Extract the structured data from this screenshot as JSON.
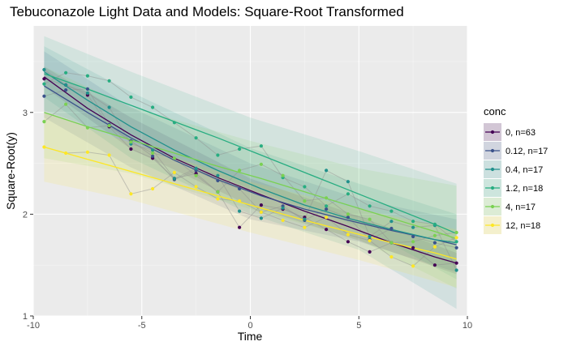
{
  "chart_data": {
    "type": "line",
    "title": "Tebuconazole Light Data and Models: Square-Root Transformed",
    "xlabel": "Time",
    "ylabel": "Square-Root(y)",
    "xlim": [
      -10,
      10
    ],
    "ylim": [
      1,
      3.85
    ],
    "x_ticks": [
      -10,
      -5,
      0,
      5,
      10
    ],
    "x_tick_labels": [
      "-10",
      "-5",
      "0",
      "5",
      "10"
    ],
    "y_ticks": [
      1,
      2,
      3
    ],
    "y_tick_labels": [
      "1",
      "2",
      "3"
    ],
    "grid": true,
    "legend": {
      "title": "conc",
      "position": "right"
    },
    "series": [
      {
        "name": "0, n=63",
        "color": "#440154",
        "points": [
          [
            -9.5,
            3.33
          ],
          [
            -8.5,
            3.27
          ],
          [
            -7.5,
            3.17
          ],
          [
            -6.5,
            2.86
          ],
          [
            -5.5,
            2.64
          ],
          [
            -4.5,
            2.55
          ],
          [
            -3.5,
            2.35
          ],
          [
            -2.5,
            2.4
          ],
          [
            -1.5,
            2.22
          ],
          [
            -0.5,
            1.87
          ],
          [
            0.5,
            2.09
          ],
          [
            1.5,
            2.05
          ],
          [
            2.5,
            1.97
          ],
          [
            3.5,
            1.85
          ],
          [
            4.5,
            1.73
          ],
          [
            5.5,
            1.63
          ],
          [
            6.5,
            1.72
          ],
          [
            7.5,
            1.67
          ],
          [
            8.5,
            1.5
          ],
          [
            9.5,
            1.52
          ]
        ],
        "fit": [
          [
            -9.5,
            3.35
          ],
          [
            -7.5,
            3.04
          ],
          [
            -5.5,
            2.78
          ],
          [
            -3.5,
            2.55
          ],
          [
            -1.5,
            2.36
          ],
          [
            0.5,
            2.19
          ],
          [
            2.5,
            2.03
          ],
          [
            4.5,
            1.88
          ],
          [
            6.5,
            1.72
          ],
          [
            8.5,
            1.58
          ],
          [
            9.5,
            1.52
          ]
        ],
        "band": {
          "upper": [
            [
              -9.5,
              3.45
            ],
            [
              -5.5,
              2.95
            ],
            [
              0,
              2.35
            ],
            [
              5,
              1.98
            ],
            [
              9.5,
              1.62
            ]
          ],
          "lower": [
            [
              -9.5,
              3.25
            ],
            [
              -5.5,
              2.64
            ],
            [
              0,
              2.08
            ],
            [
              5,
              1.74
            ],
            [
              9.5,
              1.41
            ]
          ]
        }
      },
      {
        "name": "0.12, n=17",
        "color": "#3b528b",
        "points": [
          [
            -9.5,
            3.16
          ],
          [
            -8.5,
            3.22
          ],
          [
            -7.5,
            3.23
          ],
          [
            -6.5,
            2.88
          ],
          [
            -5.5,
            2.72
          ],
          [
            -4.5,
            2.57
          ],
          [
            -3.5,
            2.34
          ],
          [
            -2.5,
            2.43
          ],
          [
            -1.5,
            2.33
          ],
          [
            -0.5,
            2.25
          ],
          [
            0.5,
            2.02
          ],
          [
            1.5,
            2.08
          ],
          [
            2.5,
            1.94
          ],
          [
            3.5,
            2.05
          ],
          [
            4.5,
            1.97
          ],
          [
            5.5,
            1.75
          ],
          [
            6.5,
            1.86
          ],
          [
            7.5,
            1.78
          ],
          [
            8.5,
            1.72
          ],
          [
            9.5,
            1.67
          ]
        ],
        "fit": [
          [
            -9.5,
            3.26
          ],
          [
            -7.5,
            3.0
          ],
          [
            -5.5,
            2.75
          ],
          [
            -3.5,
            2.53
          ],
          [
            -1.5,
            2.34
          ],
          [
            0.5,
            2.18
          ],
          [
            2.5,
            2.05
          ],
          [
            4.5,
            1.94
          ],
          [
            6.5,
            1.84
          ],
          [
            8.5,
            1.75
          ],
          [
            9.5,
            1.7
          ]
        ],
        "band": {
          "upper": [
            [
              -9.5,
              3.6
            ],
            [
              -5.5,
              3.05
            ],
            [
              0,
              2.5
            ],
            [
              5,
              2.15
            ],
            [
              9.5,
              1.95
            ]
          ],
          "lower": [
            [
              -9.5,
              2.95
            ],
            [
              -5.5,
              2.46
            ],
            [
              0,
              1.95
            ],
            [
              5,
              1.73
            ],
            [
              9.5,
              1.43
            ]
          ]
        }
      },
      {
        "name": "0.4, n=17",
        "color": "#21918c",
        "points": [
          [
            -9.5,
            3.42
          ],
          [
            -8.5,
            3.27
          ],
          [
            -7.5,
            3.19
          ],
          [
            -6.5,
            3.05
          ],
          [
            -5.5,
            2.69
          ],
          [
            -4.5,
            2.63
          ],
          [
            -3.5,
            2.35
          ],
          [
            -2.5,
            2.45
          ],
          [
            -1.5,
            2.38
          ],
          [
            -0.5,
            2.03
          ],
          [
            0.5,
            1.96
          ],
          [
            1.5,
            2.06
          ],
          [
            2.5,
            1.95
          ],
          [
            3.5,
            2.43
          ],
          [
            4.5,
            2.32
          ],
          [
            5.5,
            1.78
          ],
          [
            6.5,
            1.93
          ],
          [
            7.5,
            1.87
          ],
          [
            8.5,
            1.89
          ],
          [
            9.5,
            1.45
          ]
        ],
        "fit": [
          [
            -9.5,
            3.4
          ],
          [
            -7.5,
            3.12
          ],
          [
            -5.5,
            2.86
          ],
          [
            -3.5,
            2.63
          ],
          [
            -1.5,
            2.43
          ],
          [
            0.5,
            2.25
          ],
          [
            2.5,
            2.09
          ],
          [
            4.5,
            1.96
          ],
          [
            6.5,
            1.85
          ],
          [
            8.5,
            1.75
          ],
          [
            9.5,
            1.72
          ]
        ],
        "band": {
          "upper": [
            [
              -9.5,
              3.65
            ],
            [
              -5.5,
              3.2
            ],
            [
              0,
              2.65
            ],
            [
              5,
              2.3
            ],
            [
              9.5,
              2.0
            ]
          ],
          "lower": [
            [
              -9.5,
              3.15
            ],
            [
              -5.5,
              2.55
            ],
            [
              0,
              2.0
            ],
            [
              5,
              1.65
            ],
            [
              9.5,
              1.07
            ]
          ]
        }
      },
      {
        "name": "1.2, n=18",
        "color": "#27ad81",
        "points": [
          [
            -9.5,
            3.28
          ],
          [
            -8.5,
            3.39
          ],
          [
            -7.5,
            3.36
          ],
          [
            -6.5,
            3.31
          ],
          [
            -5.5,
            3.15
          ],
          [
            -4.5,
            3.05
          ],
          [
            -3.5,
            2.9
          ],
          [
            -2.5,
            2.75
          ],
          [
            -1.5,
            2.58
          ],
          [
            -0.5,
            2.64
          ],
          [
            0.5,
            2.67
          ],
          [
            1.5,
            2.36
          ],
          [
            2.5,
            2.27
          ],
          [
            3.5,
            2.08
          ],
          [
            4.5,
            2.2
          ],
          [
            5.5,
            2.08
          ],
          [
            6.5,
            2.03
          ],
          [
            7.5,
            1.93
          ],
          [
            8.5,
            1.9
          ],
          [
            9.5,
            1.73
          ]
        ],
        "fit": [
          [
            -9.5,
            3.38
          ],
          [
            -7.5,
            3.23
          ],
          [
            -5.5,
            3.07
          ],
          [
            -3.5,
            2.91
          ],
          [
            -1.5,
            2.75
          ],
          [
            0.5,
            2.58
          ],
          [
            2.5,
            2.41
          ],
          [
            4.5,
            2.24
          ],
          [
            6.5,
            2.07
          ],
          [
            8.5,
            1.9
          ],
          [
            9.5,
            1.81
          ]
        ],
        "band": {
          "upper": [
            [
              -9.5,
              3.75
            ],
            [
              -5.5,
              3.4
            ],
            [
              0,
              2.95
            ],
            [
              5,
              2.62
            ],
            [
              9.5,
              2.3
            ]
          ],
          "lower": [
            [
              -9.5,
              3.02
            ],
            [
              -5.5,
              2.72
            ],
            [
              0,
              2.25
            ],
            [
              5,
              1.88
            ],
            [
              9.5,
              1.36
            ]
          ]
        }
      },
      {
        "name": "4, n=17",
        "color": "#7ad151",
        "points": [
          [
            -9.5,
            2.91
          ],
          [
            -8.5,
            3.08
          ],
          [
            -7.5,
            2.85
          ],
          [
            -6.5,
            2.87
          ],
          [
            -5.5,
            2.71
          ],
          [
            -4.5,
            2.6
          ],
          [
            -3.5,
            2.55
          ],
          [
            -2.5,
            2.38
          ],
          [
            -1.5,
            2.22
          ],
          [
            -0.5,
            2.43
          ],
          [
            0.5,
            2.49
          ],
          [
            1.5,
            2.38
          ],
          [
            2.5,
            2.13
          ],
          [
            3.5,
            2.16
          ],
          [
            4.5,
            2.0
          ],
          [
            5.5,
            1.95
          ],
          [
            6.5,
            1.72
          ],
          [
            7.5,
            1.73
          ],
          [
            8.5,
            1.79
          ],
          [
            9.5,
            1.82
          ]
        ],
        "fit": [
          [
            -9.5,
            3.0
          ],
          [
            -7.5,
            2.86
          ],
          [
            -5.5,
            2.73
          ],
          [
            -3.5,
            2.6
          ],
          [
            -1.5,
            2.47
          ],
          [
            0.5,
            2.35
          ],
          [
            2.5,
            2.22
          ],
          [
            4.5,
            2.09
          ],
          [
            6.5,
            1.96
          ],
          [
            8.5,
            1.83
          ],
          [
            9.5,
            1.76
          ]
        ],
        "band": {
          "upper": [
            [
              -9.5,
              3.45
            ],
            [
              -5.5,
              3.05
            ],
            [
              0,
              2.72
            ],
            [
              5,
              2.45
            ],
            [
              9.5,
              2.28
            ]
          ],
          "lower": [
            [
              -9.5,
              2.55
            ],
            [
              -5.5,
              2.4
            ],
            [
              0,
              2.05
            ],
            [
              5,
              1.75
            ],
            [
              9.5,
              1.27
            ]
          ]
        }
      },
      {
        "name": "12, n=18",
        "color": "#fde725",
        "points": [
          [
            -9.5,
            2.66
          ],
          [
            -8.5,
            2.6
          ],
          [
            -7.5,
            2.61
          ],
          [
            -6.5,
            2.58
          ],
          [
            -5.5,
            2.2
          ],
          [
            -4.5,
            2.25
          ],
          [
            -3.5,
            2.41
          ],
          [
            -2.5,
            2.27
          ],
          [
            -1.5,
            2.15
          ],
          [
            -0.5,
            2.13
          ],
          [
            0.5,
            2.02
          ],
          [
            1.5,
            1.94
          ],
          [
            2.5,
            1.87
          ],
          [
            3.5,
            1.97
          ],
          [
            4.5,
            1.8
          ],
          [
            5.5,
            1.74
          ],
          [
            6.5,
            1.58
          ],
          [
            7.5,
            1.49
          ],
          [
            8.5,
            1.68
          ],
          [
            9.5,
            1.77
          ]
        ],
        "fit": [
          [
            -9.5,
            2.66
          ],
          [
            -7.5,
            2.54
          ],
          [
            -5.5,
            2.42
          ],
          [
            -3.5,
            2.3
          ],
          [
            -1.5,
            2.18
          ],
          [
            0.5,
            2.06
          ],
          [
            2.5,
            1.94
          ],
          [
            4.5,
            1.83
          ],
          [
            6.5,
            1.72
          ],
          [
            8.5,
            1.62
          ],
          [
            9.5,
            1.56
          ]
        ],
        "band": {
          "upper": [
            [
              -9.5,
              3.0
            ],
            [
              -5.5,
              2.7
            ],
            [
              0,
              2.32
            ],
            [
              5,
              2.05
            ],
            [
              9.5,
              1.85
            ]
          ],
          "lower": [
            [
              -9.5,
              2.32
            ],
            [
              -5.5,
              2.14
            ],
            [
              0,
              1.82
            ],
            [
              5,
              1.55
            ],
            [
              9.5,
              1.28
            ]
          ]
        }
      }
    ]
  }
}
